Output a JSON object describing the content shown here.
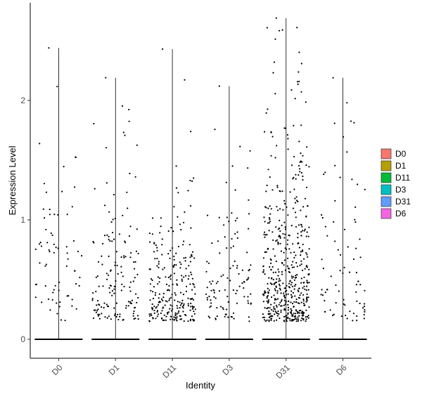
{
  "chart_data": {
    "type": "violin",
    "xlabel": "Identity",
    "ylabel": "Expression Level",
    "categories": [
      "D0",
      "D1",
      "D11",
      "D3",
      "D31",
      "D6"
    ],
    "ylim": [
      -0.15,
      2.8
    ],
    "yticks": [
      0,
      1,
      2
    ],
    "ytick_labels": [
      "0",
      "1",
      "2"
    ],
    "grid": false,
    "legend_position": "right",
    "legend": [
      {
        "name": "D0",
        "color": "#F8766D"
      },
      {
        "name": "D1",
        "color": "#B79F00"
      },
      {
        "name": "D11",
        "color": "#00BA38"
      },
      {
        "name": "D3",
        "color": "#00BFC4"
      },
      {
        "name": "D31",
        "color": "#619CFF"
      },
      {
        "name": "D6",
        "color": "#F564E3"
      }
    ],
    "max_values": [
      2.44,
      2.19,
      2.43,
      2.12,
      2.69,
      2.19
    ],
    "expressing_points": [
      {
        "name": "D0",
        "count": 70,
        "mean": 0.7
      },
      {
        "name": "D1",
        "count": 150,
        "mean": 0.6
      },
      {
        "name": "D11",
        "count": 250,
        "mean": 0.5
      },
      {
        "name": "D3",
        "count": 110,
        "mean": 0.6
      },
      {
        "name": "D31",
        "count": 520,
        "mean": 0.7
      },
      {
        "name": "D6",
        "count": 80,
        "mean": 0.7
      }
    ],
    "zero_level": 0
  }
}
